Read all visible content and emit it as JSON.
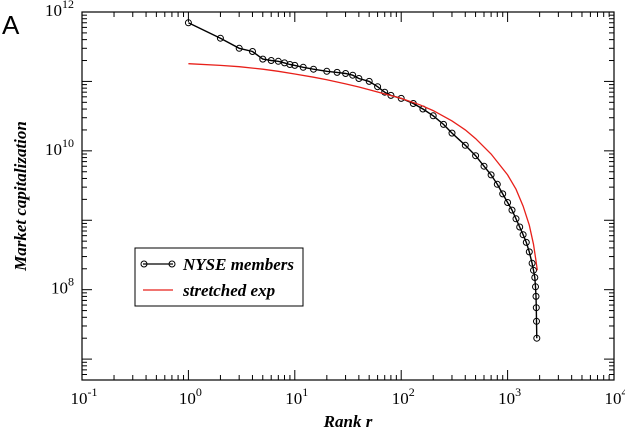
{
  "chart_data": {
    "type": "scatter",
    "panel_label": "A",
    "xlabel": "Rank r",
    "ylabel": "Market capitalization",
    "xscale": "log",
    "yscale": "log",
    "xlim": [
      0.1,
      10000
    ],
    "ylim": [
      5000000,
      1000000000000
    ],
    "x_ticks": [
      {
        "base": "10",
        "exp": "-1",
        "value": 0.1
      },
      {
        "base": "10",
        "exp": "0",
        "value": 1
      },
      {
        "base": "10",
        "exp": "1",
        "value": 10
      },
      {
        "base": "10",
        "exp": "2",
        "value": 100
      },
      {
        "base": "10",
        "exp": "3",
        "value": 1000
      },
      {
        "base": "10",
        "exp": "4",
        "value": 10000
      }
    ],
    "y_ticks": [
      {
        "base": "10",
        "exp": "8",
        "value": 100000000
      },
      {
        "base": "10",
        "exp": "10",
        "value": 10000000000
      },
      {
        "base": "10",
        "exp": "12",
        "value": 1000000000000
      }
    ],
    "grid": false,
    "legend_position": "lower-left",
    "series": [
      {
        "name": "NYSE members",
        "style": "line+open-circle",
        "color": "#000000",
        "x": [
          1,
          2,
          3,
          4,
          5,
          6,
          7,
          8,
          9,
          10,
          12,
          15,
          20,
          25,
          30,
          35,
          40,
          50,
          60,
          70,
          80,
          100,
          130,
          160,
          200,
          250,
          300,
          400,
          500,
          600,
          700,
          800,
          900,
          1000,
          1100,
          1200,
          1300,
          1400,
          1500,
          1600,
          1700,
          1750,
          1800,
          1830,
          1850,
          1860,
          1870,
          1880
        ],
        "y": [
          700000000000,
          420000000000,
          300000000000,
          270000000000,
          210000000000,
          200000000000,
          195000000000,
          185000000000,
          175000000000,
          170000000000,
          160000000000,
          150000000000,
          140000000000,
          135000000000,
          130000000000,
          123000000000,
          110000000000,
          100000000000,
          84000000000,
          70000000000,
          63000000000,
          57000000000,
          48000000000,
          40000000000,
          32000000000,
          24000000000,
          18000000000,
          12000000000,
          8500000000,
          6000000000,
          4500000000,
          3300000000,
          2400000000,
          1800000000,
          1400000000,
          1050000000,
          800000000,
          620000000,
          480000000,
          350000000,
          240000000,
          190000000,
          150000000,
          110000000,
          80000000,
          55000000,
          35000000,
          20000000
        ]
      },
      {
        "name": "stretched exp",
        "style": "line",
        "color": "#e8201a",
        "x": [
          1,
          2,
          3,
          5,
          7,
          10,
          15,
          20,
          30,
          40,
          50,
          70,
          100,
          150,
          200,
          300,
          400,
          500,
          700,
          1000,
          1200,
          1400,
          1600,
          1750,
          1850,
          1900
        ],
        "y": [
          180000000000,
          170000000000,
          163000000000,
          150000000000,
          140000000000,
          128000000000,
          115000000000,
          106000000000,
          92000000000,
          83000000000,
          76000000000,
          66000000000,
          57000000000,
          46000000000,
          38000000000,
          27000000000,
          20000000000,
          15000000000,
          9000000000,
          4500000000,
          2800000000,
          1600000000,
          850000000,
          450000000,
          260000000,
          190000000
        ]
      }
    ]
  }
}
